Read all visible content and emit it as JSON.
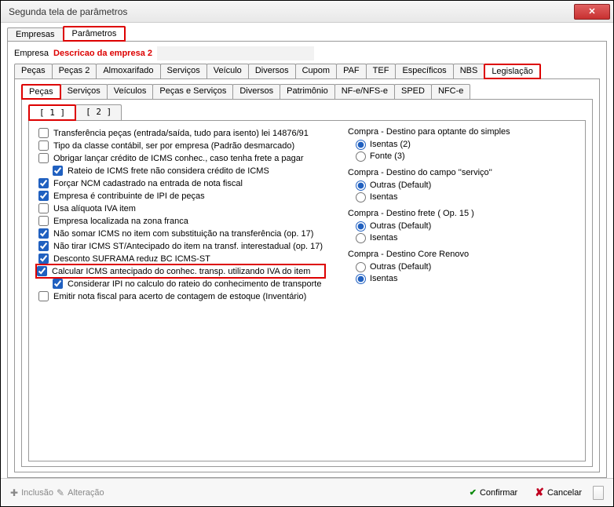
{
  "window": {
    "title": "Segunda tela de parâmetros"
  },
  "topTabs": {
    "empresas": "Empresas",
    "parametros": "Parâmetros"
  },
  "empresa": {
    "label": "Empresa",
    "value": "Descricao da empresa 2"
  },
  "mainTabs": {
    "pecas": "Peças",
    "pecas2": "Peças 2",
    "almox": "Almoxarifado",
    "servicos": "Serviços",
    "veiculo": "Veículo",
    "diversos": "Diversos",
    "cupom": "Cupom",
    "paf": "PAF",
    "tef": "TEF",
    "especificos": "Específicos",
    "nbs": "NBS",
    "legislacao": "Legislação"
  },
  "subTabs": {
    "pecas": "Peças",
    "servicos": "Serviços",
    "veiculos": "Veículos",
    "pecserv": "Peças e Serviços",
    "diversos": "Diversos",
    "patrimonio": "Patrimônio",
    "nfe": "NF-e/NFS-e",
    "sped": "SPED",
    "nfce": "NFC-e"
  },
  "pageTabs": {
    "p1": "[ 1 ]",
    "p2": "[ 2 ]"
  },
  "checkboxes": [
    {
      "label": "Transferência peças (entrada/saída, tudo para isento) lei 14876/91",
      "checked": false
    },
    {
      "label": "Tipo da classe contábil, ser por empresa (Padrão desmarcado)",
      "checked": false
    },
    {
      "label": "Obrigar lançar crédito de ICMS conhec., caso tenha frete a pagar",
      "checked": false
    },
    {
      "label": "Rateio de ICMS frete não considera crédito de ICMS",
      "checked": true,
      "indent": true
    },
    {
      "label": "Forçar NCM cadastrado na entrada de nota fiscal",
      "checked": true
    },
    {
      "label": "Empresa é contribuinte de IPI de peças",
      "checked": true
    },
    {
      "label": "Usa alíquota IVA item",
      "checked": false
    },
    {
      "label": "Empresa localizada na zona franca",
      "checked": false
    },
    {
      "label": "Não somar ICMS no item com substituição na transferência (op. 17)",
      "checked": true
    },
    {
      "label": "Não tirar ICMS ST/Antecipado do item na transf. interestadual (op. 17)",
      "checked": true
    },
    {
      "label": "Desconto SUFRAMA reduz BC ICMS-ST",
      "checked": true
    },
    {
      "label": "Calcular ICMS antecipado do conhec. transp. utilizando IVA do item",
      "checked": true,
      "hl": true
    },
    {
      "label": "Considerar IPI no calculo do rateio do conhecimento de transporte",
      "checked": true,
      "indent": true
    },
    {
      "label": "Emitir nota fiscal para acerto de contagem de estoque (Inventário)",
      "checked": false
    }
  ],
  "radioGroups": [
    {
      "title": "Compra - Destino para optante do simples",
      "name": "g1",
      "options": [
        {
          "label": "Isentas (2)",
          "checked": true
        },
        {
          "label": "Fonte (3)",
          "checked": false
        }
      ]
    },
    {
      "title": "Compra - Destino do campo ''serviço''",
      "name": "g2",
      "options": [
        {
          "label": "Outras (Default)",
          "checked": true
        },
        {
          "label": "Isentas",
          "checked": false
        }
      ]
    },
    {
      "title": "Compra - Destino frete ( Op. 15 )",
      "name": "g3",
      "options": [
        {
          "label": "Outras (Default)",
          "checked": true
        },
        {
          "label": "Isentas",
          "checked": false
        }
      ]
    },
    {
      "title": "Compra - Destino Core Renovo",
      "name": "g4",
      "options": [
        {
          "label": "Outras (Default)",
          "checked": false
        },
        {
          "label": "Isentas",
          "checked": true
        }
      ]
    }
  ],
  "footer": {
    "inclusao": "Inclusão",
    "alteracao": "Alteração",
    "confirmar": "Confirmar",
    "cancelar": "Cancelar"
  }
}
